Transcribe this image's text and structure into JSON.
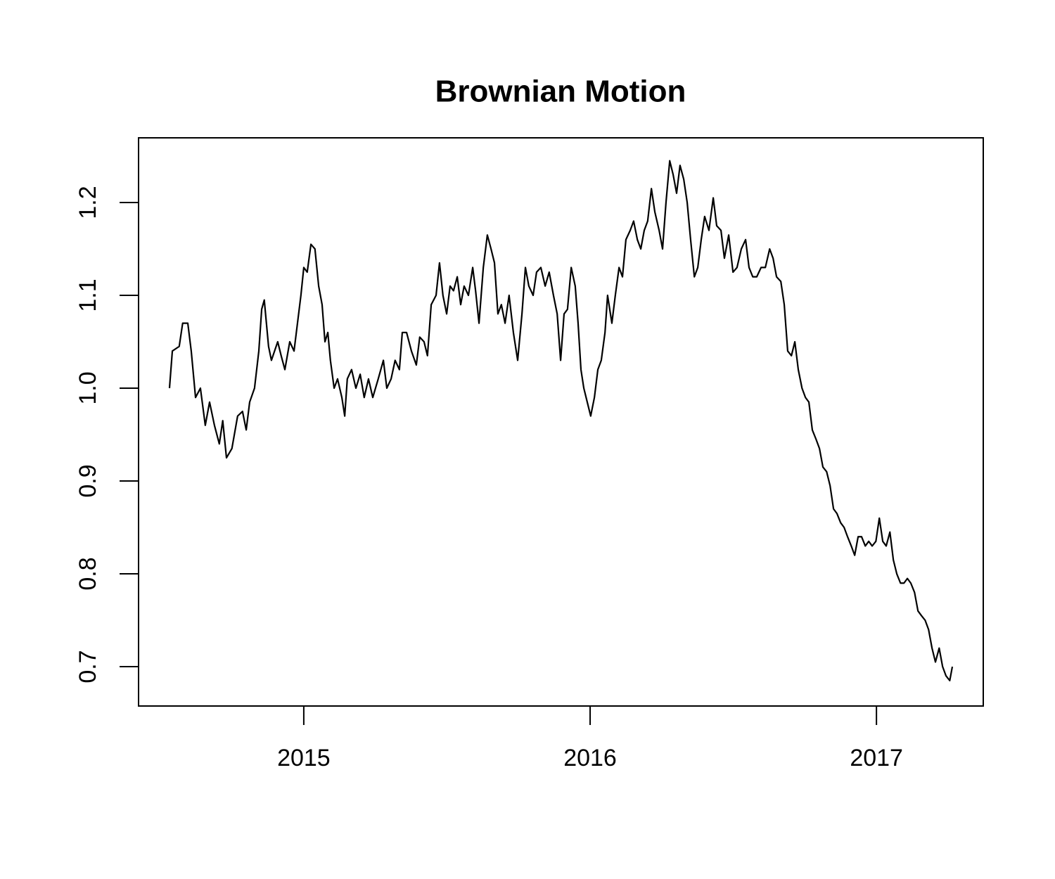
{
  "chart_data": {
    "type": "line",
    "title": "Brownian Motion",
    "color": "#000000",
    "x": [
      2014.531,
      2014.541,
      2014.565,
      2014.577,
      2014.595,
      2014.607,
      2014.622,
      2014.639,
      2014.656,
      2014.671,
      2014.688,
      2014.705,
      2014.717,
      2014.73,
      2014.749,
      2014.769,
      2014.786,
      2014.799,
      2014.811,
      2014.828,
      2014.843,
      2014.853,
      2014.862,
      2014.877,
      2014.887,
      2014.909,
      2014.921,
      2014.934,
      2014.951,
      2014.966,
      2014.978,
      2014.99,
      2015.0,
      2015.012,
      2015.025,
      2015.039,
      2015.052,
      2015.064,
      2015.074,
      2015.084,
      2015.093,
      2015.106,
      2015.118,
      2015.133,
      2015.143,
      2015.152,
      2015.167,
      2015.182,
      2015.197,
      2015.211,
      2015.226,
      2015.241,
      2015.26,
      2015.278,
      2015.29,
      2015.305,
      2015.319,
      2015.334,
      2015.344,
      2015.359,
      2015.376,
      2015.393,
      2015.405,
      2015.42,
      2015.432,
      2015.445,
      2015.462,
      2015.474,
      2015.486,
      2015.499,
      2015.511,
      2015.523,
      2015.536,
      2015.548,
      2015.56,
      2015.575,
      2015.59,
      2015.6,
      2015.612,
      2015.627,
      2015.641,
      2015.654,
      2015.666,
      2015.678,
      2015.69,
      2015.703,
      2015.717,
      2015.732,
      2015.747,
      2015.762,
      2015.774,
      2015.786,
      2015.801,
      2015.813,
      2015.828,
      2015.843,
      2015.857,
      2015.872,
      2015.885,
      2015.897,
      2015.909,
      2015.921,
      2015.934,
      2015.948,
      2015.958,
      2015.968,
      2015.978,
      2015.99,
      2016.002,
      2016.015,
      2016.027,
      2016.039,
      2016.052,
      2016.061,
      2016.076,
      2016.088,
      2016.101,
      2016.113,
      2016.125,
      2016.14,
      2016.152,
      2016.165,
      2016.177,
      2016.189,
      2016.201,
      2016.214,
      2016.226,
      2016.241,
      2016.253,
      2016.265,
      2016.278,
      2016.29,
      2016.302,
      2016.314,
      2016.327,
      2016.339,
      2016.351,
      2016.364,
      2016.376,
      2016.388,
      2016.4,
      2016.415,
      2016.43,
      2016.442,
      2016.457,
      2016.469,
      2016.484,
      2016.499,
      2016.513,
      2016.528,
      2016.543,
      2016.555,
      2016.568,
      2016.582,
      2016.597,
      2016.612,
      2016.627,
      2016.639,
      2016.651,
      2016.666,
      2016.678,
      2016.69,
      2016.703,
      2016.715,
      2016.727,
      2016.74,
      2016.752,
      2016.764,
      2016.776,
      2016.789,
      2016.801,
      2016.813,
      2016.826,
      2016.838,
      2016.85,
      2016.862,
      2016.875,
      2016.887,
      2016.899,
      2016.912,
      2016.924,
      2016.936,
      2016.948,
      2016.961,
      2016.973,
      2016.985,
      2016.998,
      2017.01,
      2017.022,
      2017.034,
      2017.047,
      2017.059,
      2017.071,
      2017.084,
      2017.096,
      2017.108,
      2017.12,
      2017.133,
      2017.145,
      2017.157,
      2017.17,
      2017.182,
      2017.194,
      2017.206,
      2017.219,
      2017.231,
      2017.243,
      2017.256,
      2017.265
    ],
    "values": [
      1.0,
      1.04,
      1.045,
      1.07,
      1.07,
      1.04,
      0.99,
      1.0,
      0.96,
      0.985,
      0.96,
      0.94,
      0.965,
      0.925,
      0.935,
      0.97,
      0.975,
      0.955,
      0.985,
      1.0,
      1.04,
      1.085,
      1.095,
      1.045,
      1.03,
      1.05,
      1.035,
      1.02,
      1.05,
      1.04,
      1.07,
      1.1,
      1.13,
      1.125,
      1.155,
      1.15,
      1.11,
      1.09,
      1.05,
      1.06,
      1.03,
      1.0,
      1.01,
      0.99,
      0.97,
      1.01,
      1.02,
      1.0,
      1.015,
      0.99,
      1.01,
      0.99,
      1.01,
      1.03,
      1.0,
      1.01,
      1.03,
      1.02,
      1.06,
      1.06,
      1.04,
      1.025,
      1.055,
      1.05,
      1.035,
      1.09,
      1.1,
      1.135,
      1.1,
      1.08,
      1.11,
      1.105,
      1.12,
      1.09,
      1.11,
      1.1,
      1.13,
      1.105,
      1.07,
      1.13,
      1.165,
      1.15,
      1.135,
      1.08,
      1.09,
      1.07,
      1.1,
      1.06,
      1.03,
      1.08,
      1.13,
      1.11,
      1.1,
      1.125,
      1.13,
      1.11,
      1.125,
      1.1,
      1.08,
      1.03,
      1.08,
      1.085,
      1.13,
      1.11,
      1.07,
      1.02,
      1.0,
      0.985,
      0.97,
      0.99,
      1.02,
      1.03,
      1.06,
      1.1,
      1.07,
      1.1,
      1.13,
      1.12,
      1.16,
      1.17,
      1.18,
      1.16,
      1.15,
      1.17,
      1.18,
      1.215,
      1.19,
      1.17,
      1.15,
      1.2,
      1.245,
      1.23,
      1.21,
      1.24,
      1.225,
      1.2,
      1.16,
      1.12,
      1.13,
      1.16,
      1.185,
      1.17,
      1.205,
      1.175,
      1.17,
      1.14,
      1.165,
      1.125,
      1.13,
      1.15,
      1.16,
      1.13,
      1.12,
      1.12,
      1.13,
      1.13,
      1.15,
      1.14,
      1.12,
      1.115,
      1.09,
      1.04,
      1.035,
      1.05,
      1.02,
      1.0,
      0.99,
      0.985,
      0.955,
      0.945,
      0.935,
      0.915,
      0.91,
      0.895,
      0.87,
      0.865,
      0.855,
      0.85,
      0.84,
      0.83,
      0.82,
      0.84,
      0.84,
      0.83,
      0.835,
      0.83,
      0.835,
      0.86,
      0.835,
      0.83,
      0.845,
      0.815,
      0.8,
      0.79,
      0.79,
      0.795,
      0.79,
      0.78,
      0.76,
      0.755,
      0.75,
      0.74,
      0.72,
      0.705,
      0.72,
      0.7,
      0.69,
      0.685,
      0.7
    ],
    "xlim": [
      2014.423,
      2017.373
    ],
    "xticks": [
      2015,
      2016,
      2017
    ],
    "ylim": [
      0.6576,
      1.2697
    ],
    "yticks": [
      0.7,
      0.8,
      0.9,
      {
        "value": 1,
        "label": "1.0"
      },
      1.1,
      1.2
    ]
  }
}
